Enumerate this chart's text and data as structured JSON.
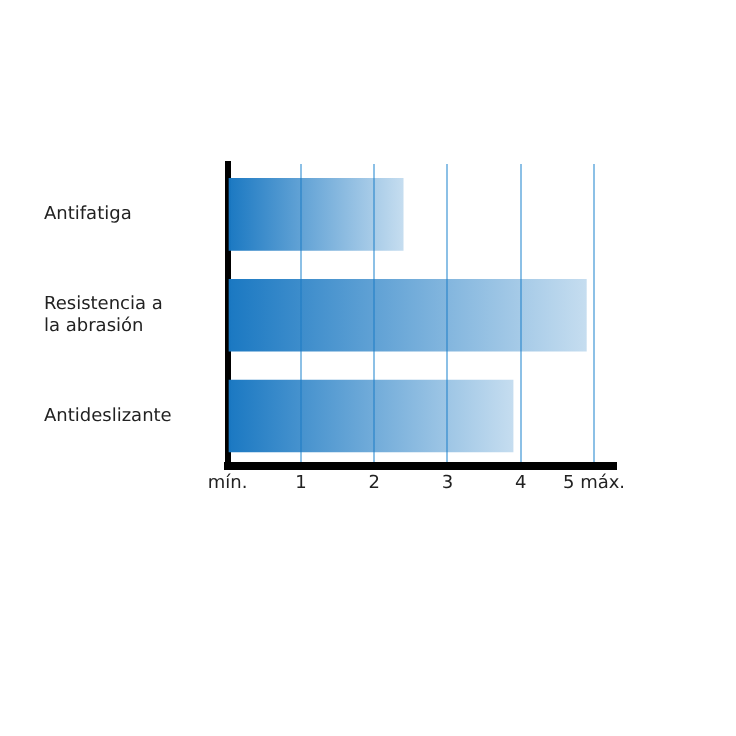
{
  "chart_data": {
    "type": "bar",
    "orientation": "horizontal",
    "categories": [
      "Antifatiga",
      "Resistencia a la abrasión",
      "Antideslizante"
    ],
    "values": [
      2.4,
      4.9,
      3.9
    ],
    "color": "#1a78c2",
    "xlim": [
      0,
      5.3
    ],
    "xticks": [
      {
        "value": 0,
        "label": "mín."
      },
      1,
      2,
      3,
      4,
      {
        "value": 5,
        "label": "5 máx."
      }
    ],
    "grid": "x"
  }
}
